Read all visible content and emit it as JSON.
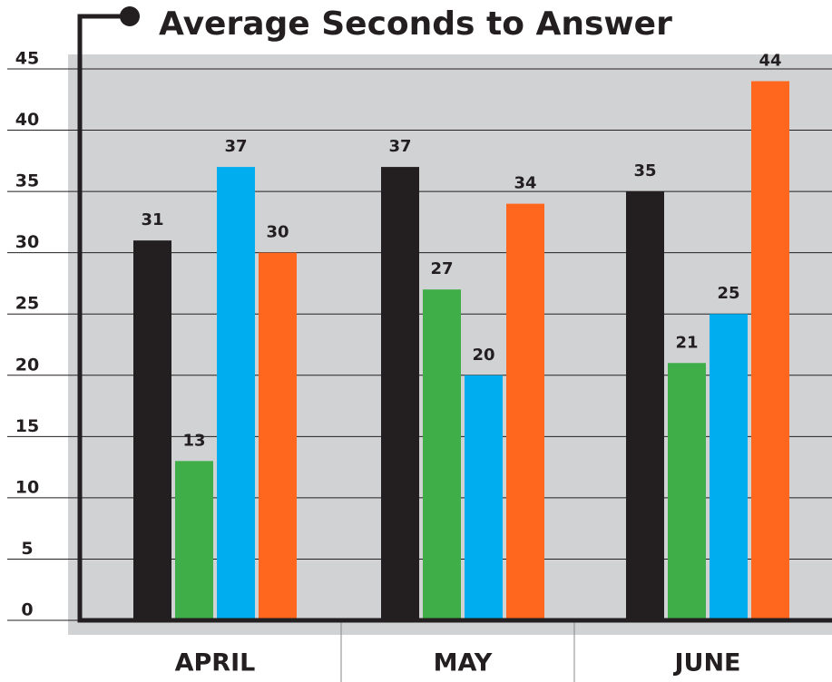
{
  "chart_data": {
    "type": "bar",
    "title": "Average Seconds to Answer",
    "categories": [
      "APRIL",
      "MAY",
      "JUNE"
    ],
    "series": [
      {
        "color": "#231f20",
        "values": [
          31,
          37,
          35
        ]
      },
      {
        "color": "#3fae49",
        "values": [
          13,
          27,
          21
        ]
      },
      {
        "color": "#00aeef",
        "values": [
          37,
          20,
          25
        ]
      },
      {
        "color": "#ff671f",
        "values": [
          30,
          34,
          44
        ]
      }
    ],
    "ylim": [
      0,
      45
    ],
    "yticks": [
      0,
      5,
      10,
      15,
      20,
      25,
      30,
      35,
      40,
      45
    ],
    "grid": true
  }
}
